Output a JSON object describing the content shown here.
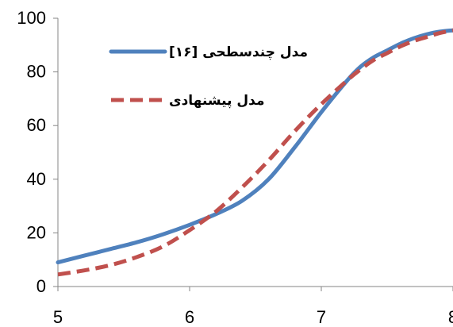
{
  "chart_data": {
    "type": "line",
    "title": "",
    "xlabel": "",
    "ylabel": "",
    "xlim": [
      5,
      8
    ],
    "ylim": [
      0,
      100
    ],
    "x_ticks": [
      5,
      6,
      7,
      8
    ],
    "y_ticks": [
      0,
      20,
      40,
      60,
      80,
      100
    ],
    "x_tick_labels": [
      "5",
      "6",
      "7",
      "8"
    ],
    "y_tick_labels": [
      "0",
      "20",
      "40",
      "60",
      "80",
      "100"
    ],
    "grid": false,
    "legend_position": "top-left",
    "series": [
      {
        "name": "مدل چندسطحی [۱۶]",
        "color": "#4f81bd",
        "line_style": "solid",
        "x": [
          5.0,
          5.2,
          5.4,
          5.6,
          5.8,
          6.0,
          6.2,
          6.4,
          6.6,
          6.8,
          7.0,
          7.2,
          7.3,
          7.4,
          7.5,
          7.6,
          7.7,
          7.8,
          7.9,
          8.0
        ],
        "y": [
          9,
          11.5,
          14,
          16.5,
          19.5,
          23,
          27,
          32,
          40,
          52,
          65,
          77,
          82,
          85.5,
          88,
          90.5,
          92.5,
          94,
          95,
          95.5
        ]
      },
      {
        "name": "مدل پیشنهادی",
        "color": "#c0504d",
        "line_style": "dashed",
        "x": [
          5.0,
          5.2,
          5.4,
          5.6,
          5.8,
          6.0,
          6.2,
          6.4,
          6.6,
          6.8,
          7.0,
          7.2,
          7.3,
          7.4,
          7.5,
          7.6,
          7.7,
          7.8,
          7.9,
          8.0
        ],
        "y": [
          4.5,
          6,
          8,
          11,
          15,
          21,
          28,
          37,
          47,
          58,
          68,
          77,
          81,
          84.5,
          87,
          89.5,
          91.5,
          93,
          94.5,
          95.5
        ]
      }
    ]
  }
}
